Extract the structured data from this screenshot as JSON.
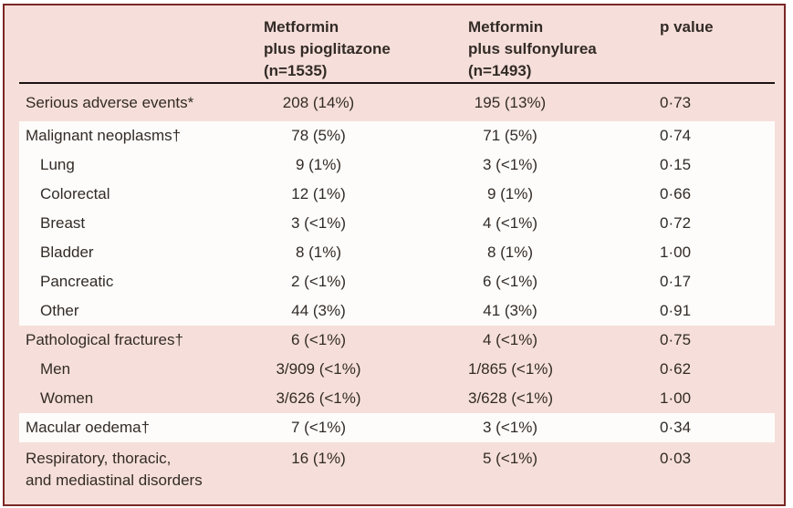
{
  "table": {
    "headers": {
      "col2": {
        "lines": [
          "Metformin",
          "plus pioglitazone",
          "(n=1535)"
        ]
      },
      "col3": {
        "lines": [
          "Metformin",
          "plus sulfonylurea",
          "(n=1493)"
        ]
      },
      "col4": "p value"
    },
    "rows": [
      {
        "label": "Serious adverse events*",
        "pio": "208 (14%)",
        "sul": "195 (13%)",
        "p": "0·73"
      },
      {
        "label": "Malignant neoplasms†",
        "pio": "78 (5%)",
        "sul": "71 (5%)",
        "p": "0·74"
      },
      {
        "label": "Lung",
        "pio": "9 (1%)",
        "sul": "3 (<1%)",
        "p": "0·15"
      },
      {
        "label": "Colorectal",
        "pio": "12 (1%)",
        "sul": "9 (1%)",
        "p": "0·66"
      },
      {
        "label": "Breast",
        "pio": "3 (<1%)",
        "sul": "4 (<1%)",
        "p": "0·72"
      },
      {
        "label": "Bladder",
        "pio": "8 (1%)",
        "sul": "8 (1%)",
        "p": "1·00"
      },
      {
        "label": "Pancreatic",
        "pio": "2 (<1%)",
        "sul": "6 (<1%)",
        "p": "0·17"
      },
      {
        "label": "Other",
        "pio": "44 (3%)",
        "sul": "41 (3%)",
        "p": "0·91"
      },
      {
        "label": "Pathological fractures†",
        "pio": "6 (<1%)",
        "sul": "4 (<1%)",
        "p": "0·75"
      },
      {
        "label": "Men",
        "pio": "3/909 (<1%)",
        "sul": "1/865 (<1%)",
        "p": "0·62"
      },
      {
        "label": "Women",
        "pio": "3/626 (<1%)",
        "sul": "3/628 (<1%)",
        "p": "1·00"
      },
      {
        "label": "Macular oedema†",
        "pio": "7 (<1%)",
        "sul": "3 (<1%)",
        "p": "0·34"
      },
      {
        "label": "Respiratory, thoracic,",
        "label2": "and mediastinal disorders",
        "pio": "16 (1%)",
        "sul": "5 (<1%)",
        "p": "0·03"
      }
    ],
    "colors": {
      "background_pink": "#f6dfda",
      "band_white": "#fdfcfa",
      "frame_border": "#7a2726",
      "header_rule": "#1a1413",
      "text": "#332b27"
    }
  }
}
